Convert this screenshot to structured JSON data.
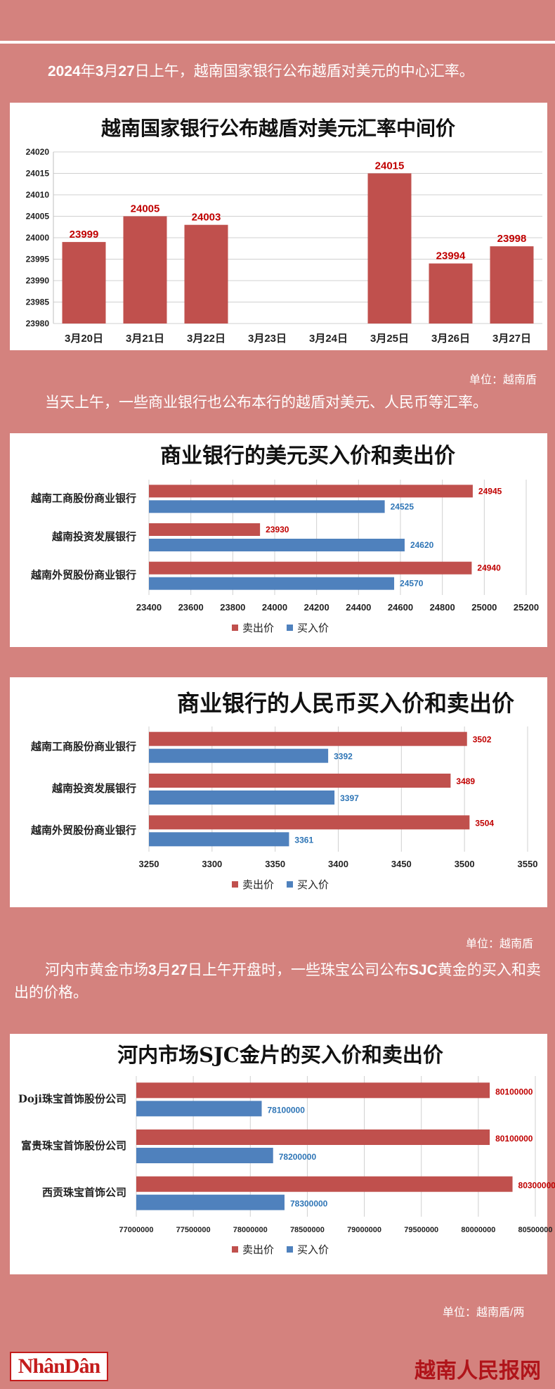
{
  "intro": {
    "p1": [
      "",
      "2024",
      "年",
      "3",
      "月",
      "27",
      "日上午，越南国家银行公布越盾对美元的中心汇率。"
    ],
    "p2": "当天上午，一些商业银行也公布本行的越盾对美元、人民币等汇率。",
    "p3": [
      "河内市黄金市场",
      "3",
      "月",
      "27",
      "日上午开盘时，一些珠宝公司公布",
      "SJC",
      "黄金的买入和卖出的价格。"
    ]
  },
  "units": {
    "u1": "单位：越南盾",
    "u2": "单位：越南盾",
    "u3": "单位：越南盾/两"
  },
  "brand": {
    "left": "NhânDân",
    "right": "越南人民报网"
  },
  "colors": {
    "background": "#d4827e",
    "sell": "#c0504d",
    "buy": "#4f81bd",
    "sell_label": "#c00000",
    "buy_label": "#2e75b6"
  },
  "chart_data": [
    {
      "type": "bar",
      "title": "越南国家银行公布越盾对美元汇率中间价",
      "categories": [
        "3月20日",
        "3月21日",
        "3月22日",
        "3月23日",
        "3月24日",
        "3月25日",
        "3月26日",
        "3月27日"
      ],
      "values": [
        23999,
        24005,
        24003,
        null,
        null,
        24015,
        23994,
        23998
      ],
      "data_labels": [
        "23999",
        "24005",
        "24003",
        "",
        "",
        "24015",
        "23994",
        "23998"
      ],
      "ylim": [
        23980,
        24020
      ],
      "yticks": [
        "23980",
        "23985",
        "23990",
        "23995",
        "24000",
        "24005",
        "24010",
        "24015",
        "24020"
      ],
      "grid": true
    },
    {
      "type": "bar",
      "orientation": "horizontal",
      "title": "商业银行的美元买入价和卖出价",
      "categories": [
        "越南工商股份商业银行",
        "越南投资发展银行",
        "越南外贸股份商业银行"
      ],
      "series": [
        {
          "name": "卖出价",
          "values": [
            24945,
            23930,
            24940
          ]
        },
        {
          "name": "买入价",
          "values": [
            24525,
            24620,
            24570
          ]
        }
      ],
      "xlim": [
        23400,
        25200
      ],
      "xticks": [
        "23400",
        "23600",
        "23800",
        "24000",
        "24200",
        "24400",
        "24600",
        "24800",
        "25000",
        "25200"
      ],
      "legend": "bottom",
      "grid": true
    },
    {
      "type": "bar",
      "orientation": "horizontal",
      "title": "商业银行的人民币买入价和卖出价",
      "categories": [
        "越南工商股份商业银行",
        "越南投资发展银行",
        "越南外贸股份商业银行"
      ],
      "series": [
        {
          "name": "卖出价",
          "values": [
            3502,
            3489,
            3504
          ]
        },
        {
          "name": "买入价",
          "values": [
            3392,
            3397,
            3361
          ]
        }
      ],
      "xlim": [
        3250,
        3550
      ],
      "xticks": [
        "3250",
        "3300",
        "3350",
        "3400",
        "3450",
        "3500",
        "3550"
      ],
      "legend": "bottom",
      "grid": true
    },
    {
      "type": "bar",
      "orientation": "horizontal",
      "title": "河内市场SJC金片的买入价和卖出价",
      "categories": [
        "Doji珠宝首饰股份公司",
        "富贵珠宝首饰股份公司",
        "西贡珠宝首饰公司"
      ],
      "series": [
        {
          "name": "卖出价",
          "values": [
            80100000,
            80100000,
            80300000
          ]
        },
        {
          "name": "买入价",
          "values": [
            78100000,
            78200000,
            78300000
          ]
        }
      ],
      "xlim": [
        77000000,
        80500000
      ],
      "xticks": [
        "77000000",
        "77500000",
        "78000000",
        "78500000",
        "79000000",
        "79500000",
        "80000000",
        "80500000"
      ],
      "legend": "bottom",
      "grid": true
    }
  ]
}
